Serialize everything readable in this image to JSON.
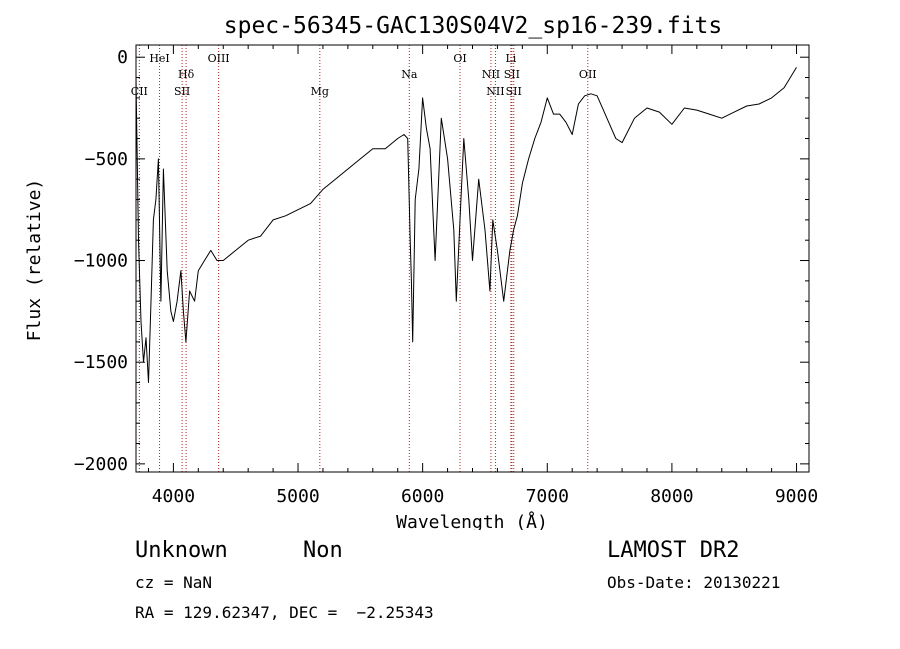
{
  "chart_data": {
    "type": "line",
    "title": "spec-56345-GAC130S04V2_sp16-239.fits",
    "xlabel": "Wavelength (Å)",
    "ylabel": "Flux (relative)",
    "xlim": [
      3700,
      9100
    ],
    "ylim": [
      -2040,
      60
    ],
    "x_ticks": [
      4000,
      5000,
      6000,
      7000,
      8000,
      9000
    ],
    "y_ticks": [
      0,
      -500,
      -1000,
      -1500,
      -2000
    ],
    "x_tick_labels": [
      "4000",
      "5000",
      "6000",
      "7000",
      "8000",
      "9000"
    ],
    "y_tick_labels": [
      "0",
      "−500",
      "−1000",
      "−1500",
      "−2000"
    ],
    "grid": false,
    "spectrum_color": "#000000",
    "line_marker_color": "#b22222",
    "spectrum": {
      "x": [
        3700,
        3705,
        3720,
        3740,
        3760,
        3780,
        3800,
        3820,
        3840,
        3860,
        3880,
        3900,
        3920,
        3950,
        3980,
        4000,
        4030,
        4060,
        4080,
        4100,
        4130,
        4170,
        4200,
        4250,
        4300,
        4350,
        4400,
        4500,
        4600,
        4700,
        4800,
        4900,
        5000,
        5100,
        5200,
        5300,
        5400,
        5500,
        5600,
        5700,
        5800,
        5850,
        5880,
        5900,
        5910,
        5920,
        5940,
        5970,
        6000,
        6030,
        6060,
        6100,
        6150,
        6200,
        6250,
        6270,
        6300,
        6330,
        6370,
        6400,
        6450,
        6500,
        6540,
        6563,
        6600,
        6630,
        6650,
        6700,
        6730,
        6760,
        6800,
        6850,
        6900,
        6950,
        7000,
        7050,
        7100,
        7150,
        7200,
        7250,
        7300,
        7350,
        7400,
        7450,
        7500,
        7550,
        7600,
        7700,
        7800,
        7900,
        8000,
        8100,
        8200,
        8300,
        8400,
        8500,
        8600,
        8700,
        8800,
        8900,
        9000
      ],
      "y": [
        -100,
        -300,
        -900,
        -1300,
        -1500,
        -1380,
        -1600,
        -1200,
        -800,
        -700,
        -500,
        -1200,
        -550,
        -1050,
        -1250,
        -1300,
        -1200,
        -1050,
        -1250,
        -1400,
        -1150,
        -1200,
        -1050,
        -1000,
        -950,
        -1000,
        -1000,
        -950,
        -900,
        -880,
        -800,
        -780,
        -750,
        -720,
        -650,
        -600,
        -550,
        -500,
        -450,
        -450,
        -400,
        -380,
        -400,
        -900,
        -1100,
        -1400,
        -700,
        -550,
        -200,
        -350,
        -450,
        -1000,
        -300,
        -500,
        -850,
        -1200,
        -800,
        -400,
        -700,
        -1000,
        -600,
        -850,
        -1150,
        -800,
        -950,
        -1100,
        -1200,
        -950,
        -850,
        -780,
        -620,
        -500,
        -400,
        -320,
        -200,
        -280,
        -280,
        -320,
        -380,
        -230,
        -190,
        -180,
        -190,
        -260,
        -330,
        -400,
        -420,
        -300,
        -250,
        -270,
        -330,
        -250,
        -260,
        -280,
        -300,
        -270,
        -240,
        -230,
        -200,
        -150,
        -50
      ]
    },
    "line_markers": [
      {
        "name": "CII",
        "wavelength": 3727,
        "row": 2
      },
      {
        "name": "HeI",
        "wavelength": 3889,
        "row": 0
      },
      {
        "name": "Hδ",
        "wavelength": 4102,
        "row": 1
      },
      {
        "name": "SII",
        "wavelength": 4070,
        "row": 2
      },
      {
        "name": "OIII",
        "wavelength": 4363,
        "row": 0
      },
      {
        "name": "Mg",
        "wavelength": 5175,
        "row": 2
      },
      {
        "name": "Na",
        "wavelength": 5893,
        "row": 1
      },
      {
        "name": "OI",
        "wavelength": 6300,
        "row": 0
      },
      {
        "name": "NII",
        "wavelength": 6548,
        "row": 1
      },
      {
        "name": "NII",
        "wavelength": 6584,
        "row": 2
      },
      {
        "name": "Li",
        "wavelength": 6708,
        "row": 0
      },
      {
        "name": "SII",
        "wavelength": 6716,
        "row": 1
      },
      {
        "name": "SII",
        "wavelength": 6731,
        "row": 2
      },
      {
        "name": "OII",
        "wavelength": 7325,
        "row": 1
      }
    ]
  },
  "info": {
    "class": "Unknown",
    "subclass": "Non",
    "survey": "LAMOST DR2",
    "cz": "cz = NaN",
    "obs_date": "Obs-Date: 20130221",
    "coords": "RA = 129.62347, DEC =  −2.25343"
  }
}
